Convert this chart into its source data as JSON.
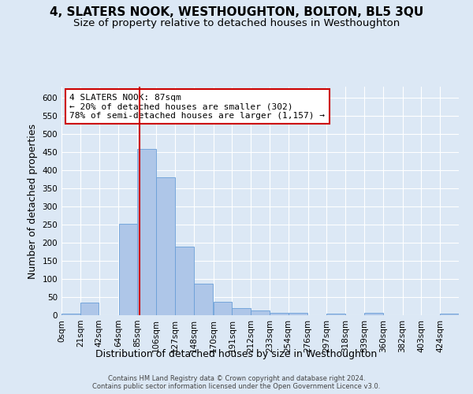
{
  "title": "4, SLATERS NOOK, WESTHOUGHTON, BOLTON, BL5 3QU",
  "subtitle": "Size of property relative to detached houses in Westhoughton",
  "xlabel": "Distribution of detached houses by size in Westhoughton",
  "ylabel": "Number of detached properties",
  "bar_color": "#aec6e8",
  "bar_edge_color": "#6a9fd8",
  "categories": [
    "0sqm",
    "21sqm",
    "42sqm",
    "64sqm",
    "85sqm",
    "106sqm",
    "127sqm",
    "148sqm",
    "170sqm",
    "191sqm",
    "212sqm",
    "233sqm",
    "254sqm",
    "276sqm",
    "297sqm",
    "318sqm",
    "339sqm",
    "360sqm",
    "382sqm",
    "403sqm",
    "424sqm"
  ],
  "bin_edges": [
    0,
    21,
    42,
    64,
    85,
    106,
    127,
    148,
    170,
    191,
    212,
    233,
    254,
    276,
    297,
    318,
    339,
    360,
    382,
    403,
    424,
    445
  ],
  "values": [
    5,
    35,
    0,
    252,
    458,
    380,
    188,
    87,
    37,
    20,
    13,
    7,
    6,
    0,
    5,
    0,
    6,
    0,
    0,
    0,
    5
  ],
  "ylim": [
    0,
    630
  ],
  "yticks": [
    0,
    50,
    100,
    150,
    200,
    250,
    300,
    350,
    400,
    450,
    500,
    550,
    600
  ],
  "annotation_line1": "4 SLATERS NOOK: 87sqm",
  "annotation_line2": "← 20% of detached houses are smaller (302)",
  "annotation_line3": "78% of semi-detached houses are larger (1,157) →",
  "annotation_box_color": "#ffffff",
  "annotation_box_edge": "#cc0000",
  "footer_line1": "Contains HM Land Registry data © Crown copyright and database right 2024.",
  "footer_line2": "Contains public sector information licensed under the Open Government Licence v3.0.",
  "background_color": "#dce8f5",
  "plot_background": "#dce8f5",
  "grid_color": "#ffffff",
  "vline_color": "#cc0000",
  "vline_x": 87,
  "title_fontsize": 11,
  "subtitle_fontsize": 9.5,
  "axis_label_fontsize": 9,
  "tick_fontsize": 7.5,
  "annotation_fontsize": 8
}
